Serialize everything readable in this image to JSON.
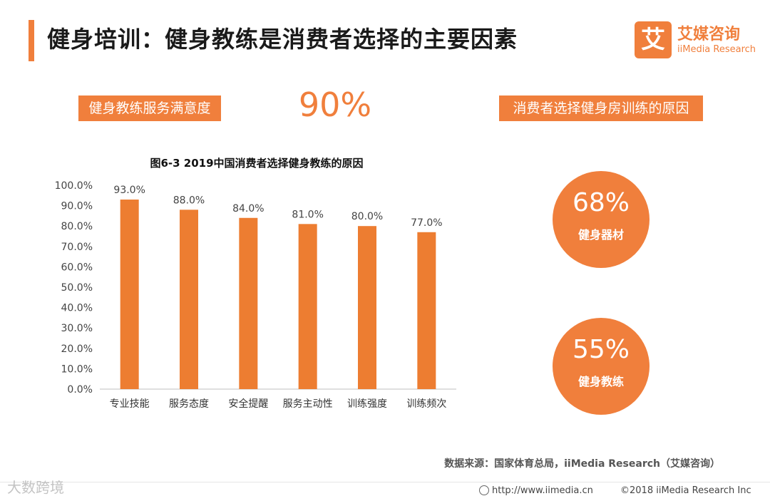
{
  "header": {
    "title": "健身培训：健身教练是消费者选择的主要因素",
    "logo_mark": "艾",
    "logo_cn": "艾媒咨询",
    "logo_en": "iiMedia Research"
  },
  "satisfaction": {
    "label": "健身教练服务满意度",
    "value": "90%"
  },
  "reasons": {
    "label": "消费者选择健身房训练的原因",
    "items": [
      {
        "pct": "68%",
        "label": "健身器材"
      },
      {
        "pct": "55%",
        "label": "健身教练"
      }
    ]
  },
  "chart_data": {
    "type": "bar",
    "title": "图6-3 2019中国消费者选择健身教练的原因",
    "categories": [
      "专业技能",
      "服务态度",
      "安全提醒",
      "服务主动性",
      "训练强度",
      "训练频次"
    ],
    "values": [
      93.0,
      88.0,
      84.0,
      81.0,
      80.0,
      77.0
    ],
    "value_labels": [
      "93.0%",
      "88.0%",
      "84.0%",
      "81.0%",
      "80.0%",
      "77.0%"
    ],
    "y_ticks": [
      "0.0%",
      "10.0%",
      "20.0%",
      "30.0%",
      "40.0%",
      "50.0%",
      "60.0%",
      "70.0%",
      "80.0%",
      "90.0%",
      "100.0%"
    ],
    "ylim": [
      0,
      100
    ],
    "xlabel": "",
    "ylabel": "",
    "grid": false,
    "color": "#ed7d31"
  },
  "footer": {
    "source": "数据来源：国家体育总局，iiMedia Research（艾媒咨询）",
    "url": "http://www.iimedia.cn",
    "copyright": "©2018  iiMedia Research  Inc",
    "watermark": "大数跨境"
  },
  "colors": {
    "accent": "#f07f3c",
    "bar": "#ed7d31"
  }
}
